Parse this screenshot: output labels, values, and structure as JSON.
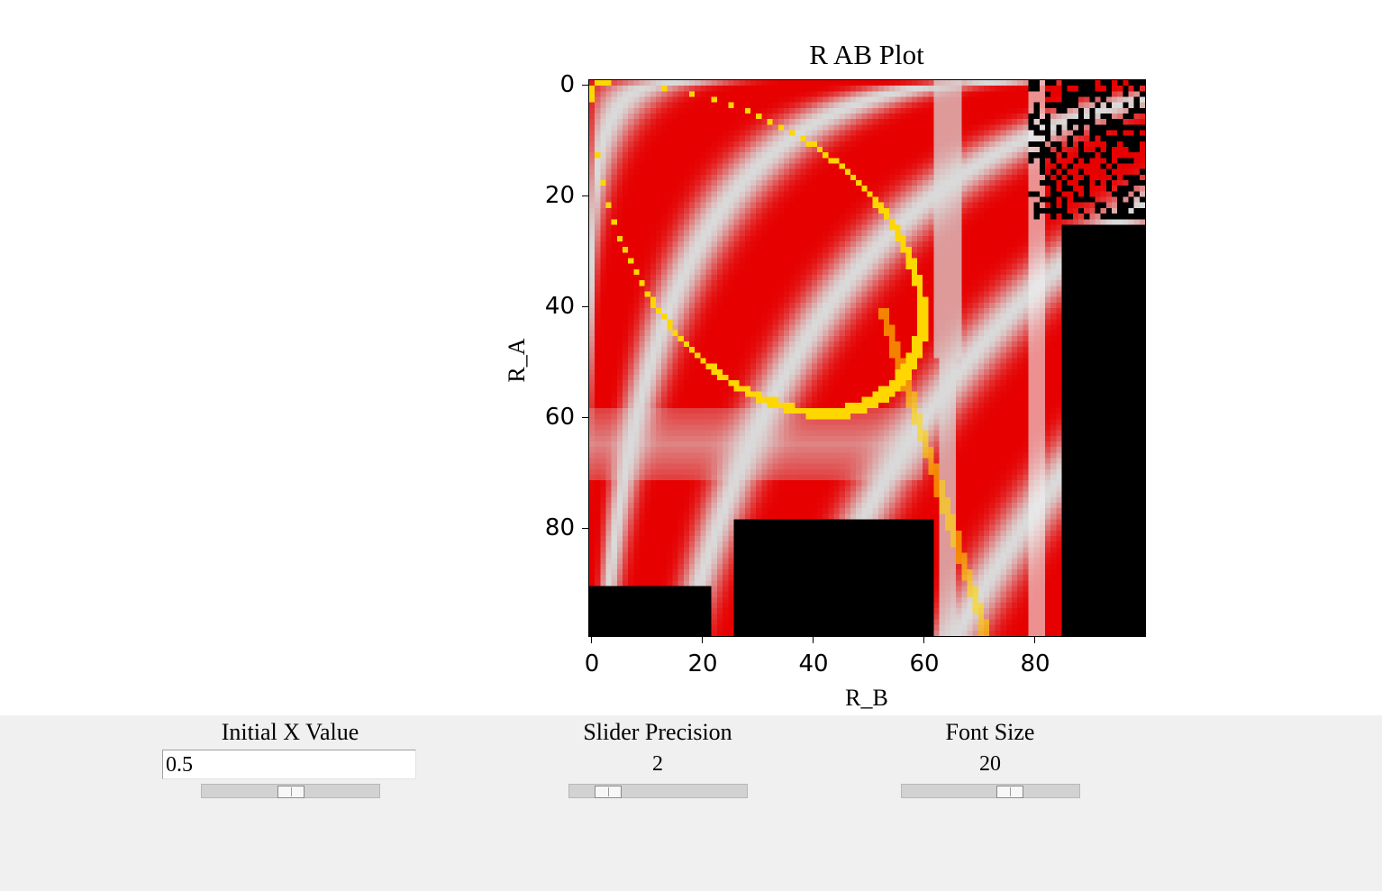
{
  "plot": {
    "title": "R AB Plot",
    "xlabel": "R_B",
    "ylabel": "R_A",
    "xticks": [
      "0",
      "20",
      "40",
      "60",
      "80"
    ],
    "yticks": [
      "0",
      "20",
      "40",
      "60",
      "80"
    ]
  },
  "controls": {
    "initial_x": {
      "label": "Initial X Value",
      "value": "0.5",
      "slider_position": 0.5
    },
    "slider_precision": {
      "label": "Slider Precision",
      "value": "2",
      "slider_position": 0.17
    },
    "font_size": {
      "label": "Font Size",
      "value": "20",
      "slider_position": 0.63
    }
  },
  "colors": {
    "heatmap_red": "#e60000",
    "heatmap_light": "#d9d9d9",
    "heatmap_black": "#000000",
    "heatmap_yellow": "#ffd700",
    "heatmap_green": "#00cc33",
    "panel_background": "#f0f0f0"
  }
}
